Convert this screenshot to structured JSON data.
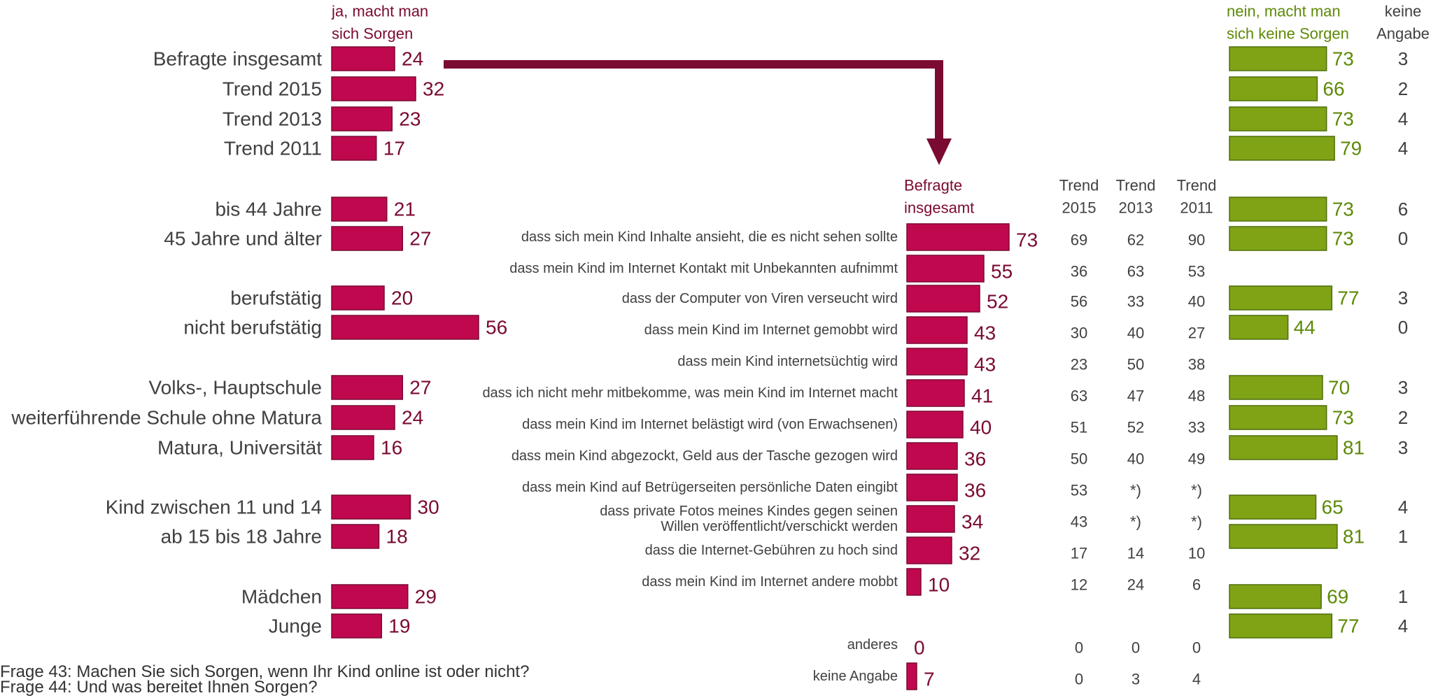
{
  "colors": {
    "yes_fill": "#c0084f",
    "yes_stroke": "#7a0a32",
    "yes_text": "#7a0a32",
    "no_fill": "#7fa315",
    "no_stroke": "#4f6e0c",
    "no_text": "#5d8a07",
    "label_text": "#404040",
    "arrow": "#7a0a32"
  },
  "footnotes": [
    "Frage 43: Machen Sie sich Sorgen, wenn Ihr Kind online ist oder nicht?",
    "Frage 44: Und was bereitet Ihnen Sorgen?"
  ],
  "chart_data": [
    {
      "type": "bar",
      "orientation": "horizontal",
      "title": "Frage 43: Machen Sie sich Sorgen, wenn Ihr Kind online ist oder nicht?",
      "headers": {
        "yes": "ja, macht man sich Sorgen",
        "yes_lines": [
          "ja, macht man",
          "sich Sorgen"
        ],
        "no": "nein, macht man sich keine Sorgen",
        "no_lines": [
          "nein, macht man",
          "sich keine Sorgen"
        ],
        "na": "keine Angabe",
        "na_lines": [
          "keine",
          "Angabe"
        ]
      },
      "categories": [
        "Befragte insgesamt",
        "Trend 2015",
        "Trend 2013",
        "Trend 2011",
        "bis 44 Jahre",
        "45 Jahre und älter",
        "berufstätig",
        "nicht berufstätig",
        "Volks-, Hauptschule",
        "weiterführende Schule ohne Matura",
        "Matura, Universität",
        "Kind zwischen 11 und 14",
        "ab 15 bis 18 Jahre",
        "Mädchen",
        "Junge"
      ],
      "series": [
        {
          "name": "ja, macht man sich Sorgen",
          "values": [
            24,
            32,
            23,
            17,
            21,
            27,
            20,
            56,
            27,
            24,
            16,
            30,
            18,
            29,
            19
          ]
        },
        {
          "name": "nein, macht man sich keine Sorgen",
          "values": [
            73,
            66,
            73,
            79,
            73,
            73,
            77,
            44,
            70,
            73,
            81,
            65,
            81,
            69,
            77
          ]
        },
        {
          "name": "keine Angabe",
          "values": [
            3,
            2,
            4,
            4,
            6,
            0,
            3,
            0,
            3,
            2,
            3,
            4,
            1,
            1,
            4
          ]
        }
      ],
      "xlim": [
        0,
        100
      ]
    },
    {
      "type": "bar",
      "orientation": "horizontal",
      "title": "Frage 44: Und was bereitet Ihnen Sorgen?",
      "headers": {
        "current": "Befragte insgesamt",
        "current_lines": [
          "Befragte",
          "insgesamt"
        ],
        "trends": [
          {
            "lines": [
              "Trend",
              "2015"
            ]
          },
          {
            "lines": [
              "Trend",
              "2013"
            ]
          },
          {
            "lines": [
              "Trend",
              "2011"
            ]
          }
        ]
      },
      "categories": [
        "dass sich mein Kind Inhalte ansieht, die es nicht sehen sollte",
        "dass mein Kind im Internet Kontakt mit Unbekannten aufnimmt",
        "dass der Computer von Viren verseucht wird",
        "dass mein Kind im Internet gemobbt wird",
        "dass mein Kind internetsüchtig wird",
        "dass ich nicht mehr mitbekomme, was mein Kind im Internet macht",
        "dass mein Kind im Internet belästigt wird (von Erwachsenen)",
        "dass mein Kind abgezockt, Geld aus der Tasche gezogen wird",
        "dass mein Kind auf Betrügerseiten persönliche Daten eingibt",
        "dass private Fotos meines Kindes gegen seinen Willen veröffentlicht/verschickt werden",
        "dass die Internet-Gebühren zu hoch sind",
        "dass mein Kind im Internet andere mobbt",
        "anderes",
        "keine Angabe"
      ],
      "category_lines": [
        [
          "dass sich mein Kind Inhalte ansieht, die es nicht sehen sollte"
        ],
        [
          "dass mein Kind im Internet Kontakt mit Unbekannten aufnimmt"
        ],
        [
          "dass der Computer von Viren verseucht wird"
        ],
        [
          "dass mein Kind im Internet gemobbt wird"
        ],
        [
          "dass mein Kind internetsüchtig wird"
        ],
        [
          "dass ich nicht mehr mitbekomme, was mein Kind im Internet macht"
        ],
        [
          "dass mein Kind im Internet belästigt wird (von Erwachsenen)"
        ],
        [
          "dass mein Kind abgezockt, Geld aus der Tasche gezogen wird"
        ],
        [
          "dass mein Kind auf Betrügerseiten persönliche Daten eingibt"
        ],
        [
          "dass private Fotos meines Kindes gegen seinen",
          "Willen veröffentlicht/verschickt werden"
        ],
        [
          "dass die Internet-Gebühren zu hoch sind"
        ],
        [
          "dass mein Kind im Internet andere mobbt"
        ],
        [
          "anderes"
        ],
        [
          "keine Angabe"
        ]
      ],
      "series": [
        {
          "name": "Befragte insgesamt",
          "values": [
            73,
            55,
            52,
            43,
            43,
            41,
            40,
            36,
            36,
            34,
            32,
            10,
            0,
            7
          ]
        },
        {
          "name": "Trend 2015",
          "values": [
            "69",
            "36",
            "56",
            "30",
            "23",
            "63",
            "51",
            "50",
            "53",
            "43",
            "17",
            "12",
            "0",
            "0"
          ]
        },
        {
          "name": "Trend 2013",
          "values": [
            "62",
            "63",
            "33",
            "40",
            "50",
            "47",
            "52",
            "40",
            "*)",
            "*)",
            "14",
            "24",
            "0",
            "3"
          ]
        },
        {
          "name": "Trend 2011",
          "values": [
            "90",
            "53",
            "40",
            "27",
            "38",
            "48",
            "33",
            "49",
            "*)",
            "*)",
            "10",
            "6",
            "0",
            "4"
          ]
        }
      ],
      "xlim": [
        0,
        100
      ]
    }
  ]
}
